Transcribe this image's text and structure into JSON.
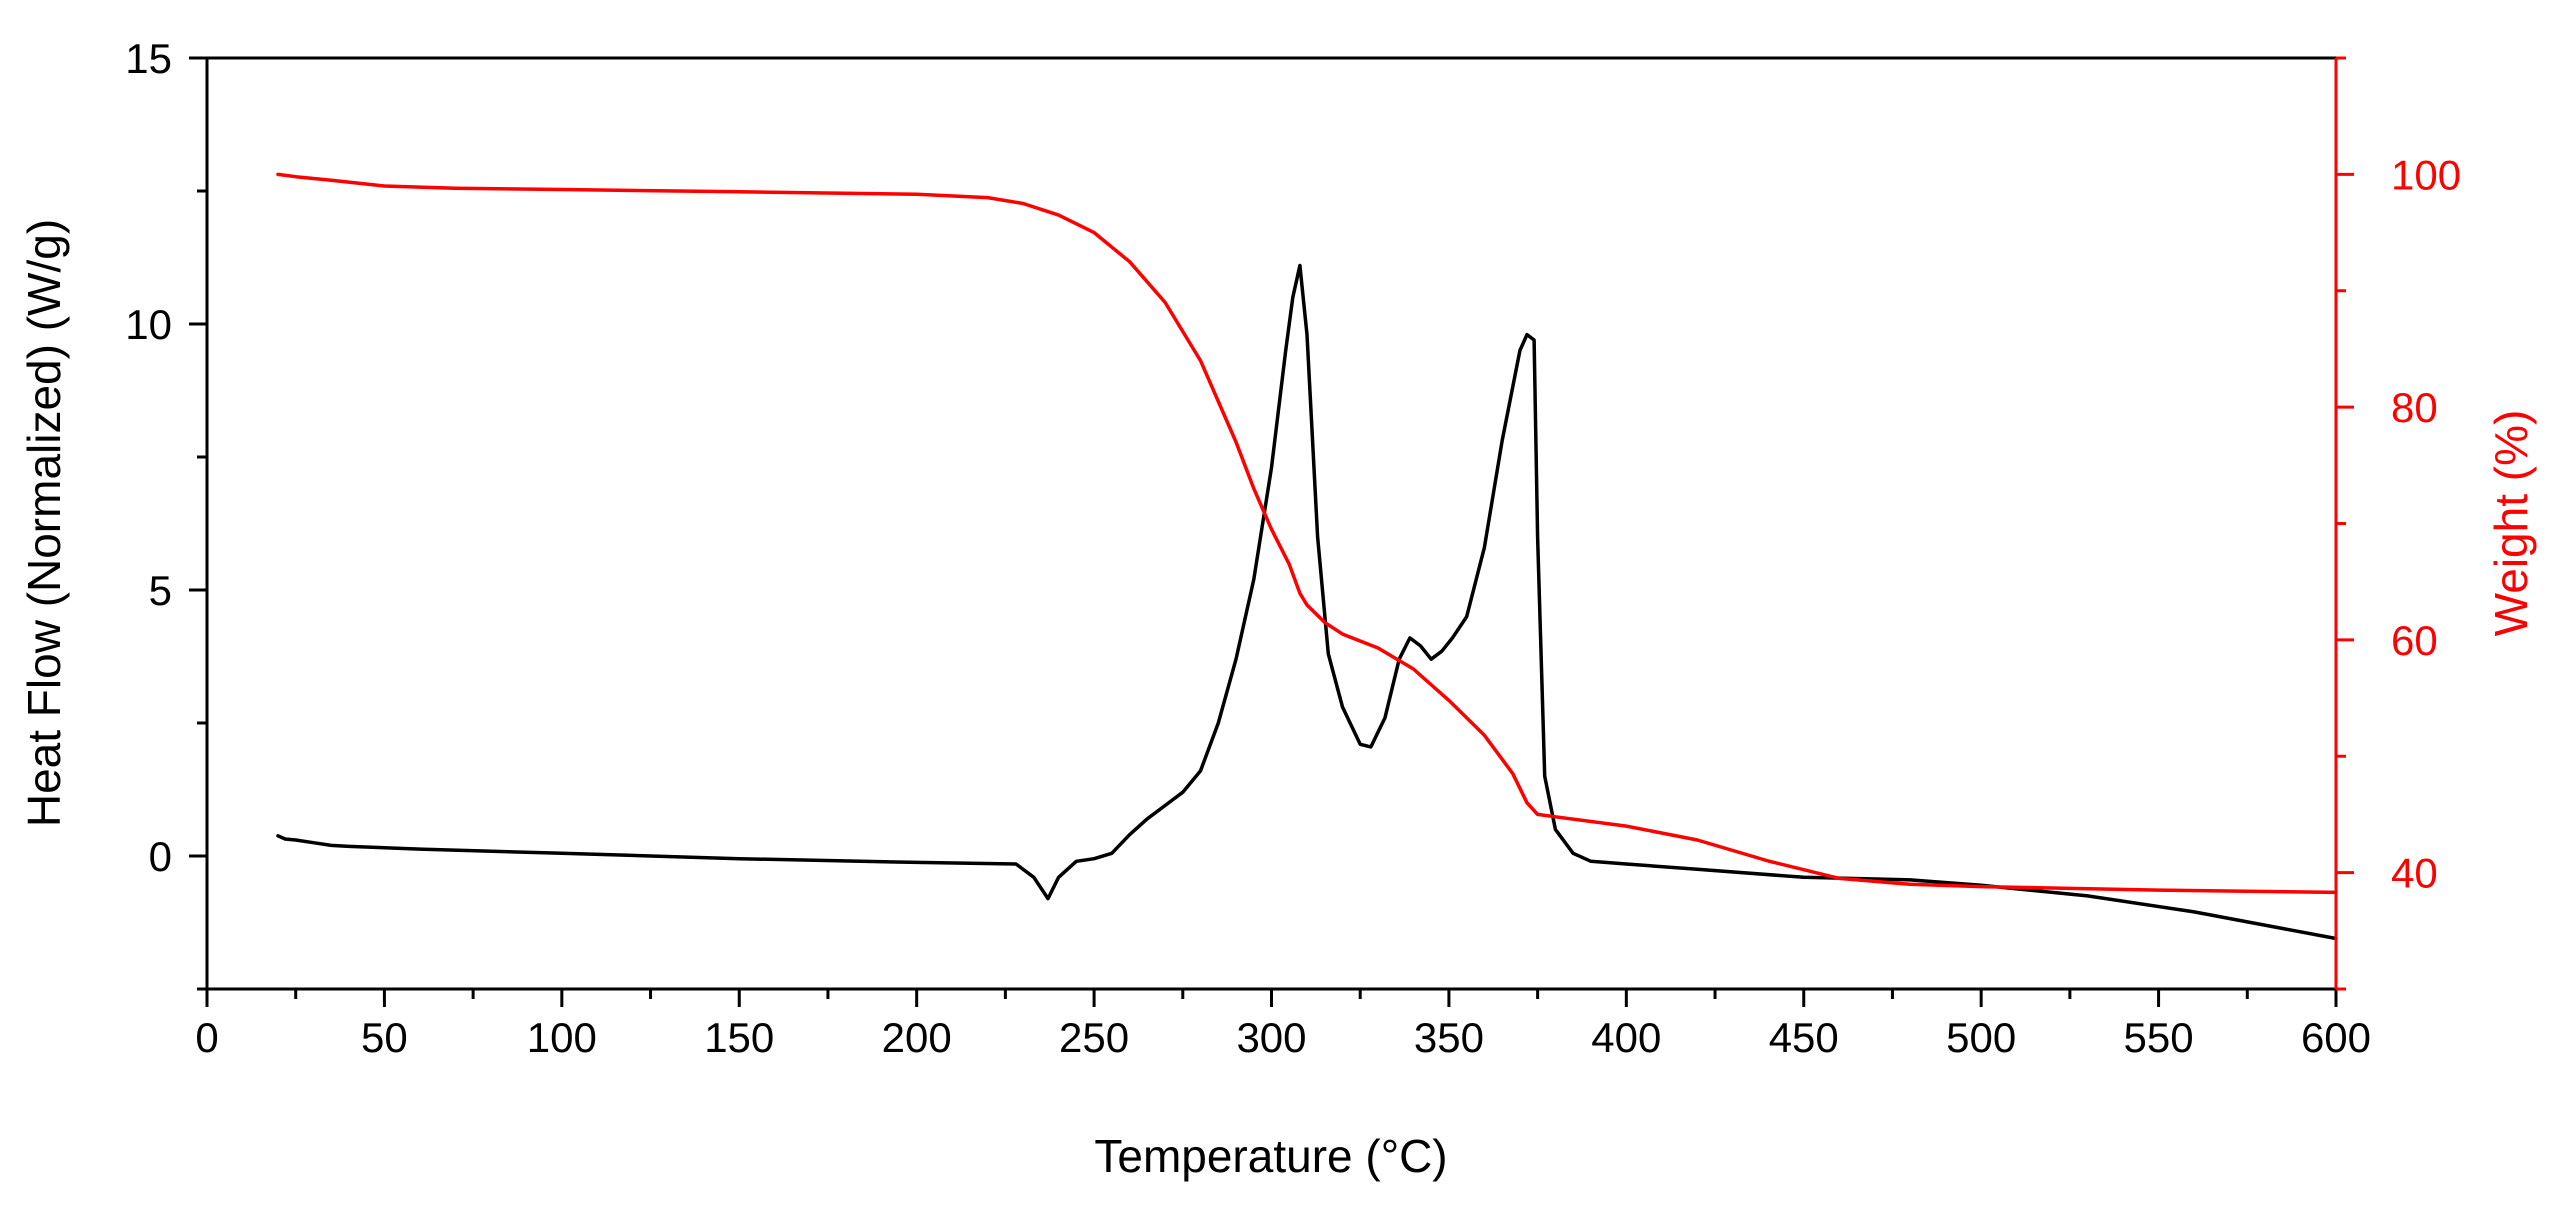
{
  "chart_data": {
    "type": "line",
    "title": "",
    "xlabel": "Temperature (°C)",
    "ylabel": "Heat Flow (Normalized) (W/g)",
    "y2label": "Weight (%)",
    "xlim": [
      0,
      600
    ],
    "ylim": [
      -2.5,
      15
    ],
    "y2lim": [
      30,
      110
    ],
    "x_ticks": [
      "0",
      "50",
      "100",
      "150",
      "200",
      "250",
      "300",
      "350",
      "400",
      "450",
      "500",
      "550",
      "600"
    ],
    "y_ticks": [
      "0",
      "5",
      "10",
      "15"
    ],
    "y2_ticks": [
      "40",
      "60",
      "80",
      "100"
    ],
    "grid": false,
    "series": [
      {
        "name": "Heat Flow",
        "axis": "left",
        "color": "#000000",
        "x": [
          20,
          22,
          25,
          30,
          35,
          40,
          60,
          100,
          150,
          200,
          228,
          233,
          237,
          240,
          245,
          250,
          255,
          260,
          265,
          270,
          275,
          280,
          285,
          290,
          295,
          300,
          304,
          306,
          308,
          310,
          313,
          316,
          320,
          325,
          328,
          332,
          336,
          339,
          342,
          345,
          348,
          351,
          355,
          360,
          365,
          370,
          372,
          374,
          375,
          377,
          380,
          385,
          390,
          400,
          420,
          450,
          480,
          500,
          530,
          560,
          600
        ],
        "values": [
          0.38,
          0.32,
          0.3,
          0.25,
          0.2,
          0.18,
          0.13,
          0.05,
          -0.05,
          -0.12,
          -0.15,
          -0.4,
          -0.8,
          -0.4,
          -0.1,
          -0.05,
          0.05,
          0.4,
          0.7,
          0.95,
          1.2,
          1.6,
          2.5,
          3.7,
          5.2,
          7.3,
          9.5,
          10.5,
          11.1,
          9.8,
          6.0,
          3.8,
          2.8,
          2.1,
          2.05,
          2.6,
          3.7,
          4.1,
          3.95,
          3.7,
          3.85,
          4.1,
          4.5,
          5.8,
          7.8,
          9.5,
          9.8,
          9.7,
          6.0,
          1.5,
          0.5,
          0.05,
          -0.1,
          -0.15,
          -0.25,
          -0.4,
          -0.45,
          -0.55,
          -0.75,
          -1.05,
          -1.55
        ]
      },
      {
        "name": "Weight",
        "axis": "right",
        "color": "#ff0000",
        "x": [
          20,
          25,
          35,
          50,
          70,
          100,
          150,
          200,
          220,
          230,
          240,
          250,
          260,
          270,
          280,
          290,
          295,
          300,
          305,
          308,
          310,
          315,
          320,
          330,
          340,
          350,
          360,
          368,
          372,
          375,
          380,
          400,
          420,
          440,
          460,
          480,
          500,
          550,
          600
        ],
        "values": [
          100,
          99.8,
          99.5,
          99.0,
          98.8,
          98.7,
          98.5,
          98.3,
          98.0,
          97.5,
          96.5,
          95,
          92.5,
          89,
          84,
          77,
          73,
          69.5,
          66.5,
          64,
          63,
          61.5,
          60.5,
          59.3,
          57.5,
          54.8,
          51.8,
          48.5,
          46,
          45,
          44.8,
          44,
          42.8,
          41,
          39.5,
          39,
          38.8,
          38.5,
          38.3
        ]
      }
    ]
  }
}
